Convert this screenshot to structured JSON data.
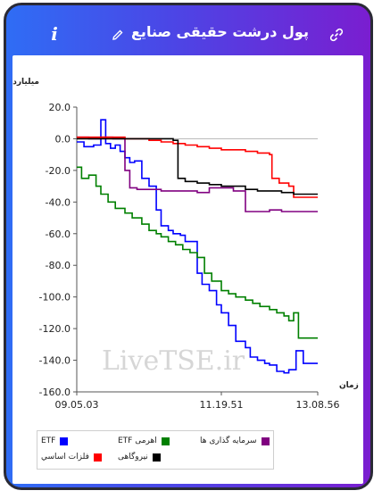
{
  "header": {
    "title": "پول درشت حقیقی صنایع",
    "info_label": "i",
    "info_icon": "info-icon",
    "edit_icon": "pencil-icon",
    "link_icon": "link-icon"
  },
  "watermark": "LiveTSE.ir",
  "colors": {
    "gradient_start": "#2f6df5",
    "gradient_end": "#7a1ed0"
  },
  "chart_data": {
    "type": "line",
    "ylabel": "میلیارد تومان",
    "xlabel": "زمان",
    "ylim": [
      -160,
      20
    ],
    "xlim": [
      0,
      1
    ],
    "yticks": [
      20,
      0,
      -20,
      -40,
      -60,
      -80,
      -100,
      -120,
      -140,
      -160
    ],
    "ytick_labels": [
      "20.0",
      "0.0",
      "-20.0",
      "-40.0",
      "-60.0",
      "-80.0",
      "-100.0",
      "-120.0",
      "-140.0",
      "-160.0"
    ],
    "xticks": [
      0,
      0.6,
      1
    ],
    "xtick_labels": [
      "09.05.03",
      "11.19.51",
      "13.08.56"
    ],
    "grid": false,
    "legend_position": "bottom",
    "series": [
      {
        "name": "ETF",
        "color": "#0000ff",
        "x": [
          0,
          0.03,
          0.07,
          0.1,
          0.12,
          0.14,
          0.16,
          0.18,
          0.2,
          0.22,
          0.24,
          0.27,
          0.3,
          0.33,
          0.35,
          0.38,
          0.4,
          0.43,
          0.45,
          0.5,
          0.52,
          0.55,
          0.58,
          0.6,
          0.63,
          0.66,
          0.7,
          0.72,
          0.75,
          0.78,
          0.8,
          0.83,
          0.86,
          0.88,
          0.91,
          0.94,
          0.97,
          1.0
        ],
        "y": [
          -2,
          -5,
          -4,
          12,
          -3,
          -6,
          -4,
          -8,
          -12,
          -15,
          -14,
          -25,
          -30,
          -45,
          -55,
          -58,
          -60,
          -61,
          -65,
          -85,
          -92,
          -96,
          -105,
          -110,
          -118,
          -128,
          -132,
          -138,
          -140,
          -142,
          -143,
          -147,
          -148,
          -146,
          -134,
          -142,
          -142,
          -142
        ]
      },
      {
        "name": "اهرمی ETF",
        "color": "#008000",
        "x": [
          0,
          0.02,
          0.05,
          0.08,
          0.1,
          0.13,
          0.16,
          0.2,
          0.23,
          0.27,
          0.3,
          0.33,
          0.35,
          0.38,
          0.41,
          0.44,
          0.47,
          0.5,
          0.53,
          0.56,
          0.6,
          0.63,
          0.66,
          0.7,
          0.73,
          0.76,
          0.8,
          0.83,
          0.86,
          0.88,
          0.9,
          0.92,
          1.0
        ],
        "y": [
          -18,
          -25,
          -23,
          -30,
          -35,
          -40,
          -44,
          -47,
          -50,
          -54,
          -58,
          -60,
          -62,
          -65,
          -67,
          -70,
          -72,
          -75,
          -85,
          -90,
          -96,
          -98,
          -100,
          -102,
          -104,
          -106,
          -108,
          -110,
          -112,
          -115,
          -110,
          -126,
          -126
        ]
      },
      {
        "name": "سرمایه گذاری ها",
        "color": "#800080",
        "x": [
          0,
          0.05,
          0.1,
          0.15,
          0.2,
          0.22,
          0.25,
          0.3,
          0.35,
          0.4,
          0.45,
          0.5,
          0.55,
          0.6,
          0.65,
          0.7,
          0.75,
          0.8,
          0.85,
          0.9,
          0.95,
          1.0
        ],
        "y": [
          1,
          0,
          1,
          0,
          -20,
          -31,
          -32,
          -32,
          -33,
          -33,
          -33,
          -34,
          -31,
          -31,
          -33,
          -46,
          -46,
          -45,
          -46,
          -46,
          -46,
          -46
        ]
      },
      {
        "name": "فلزات اساسي",
        "color": "#ff0000",
        "x": [
          0,
          0.1,
          0.2,
          0.3,
          0.35,
          0.4,
          0.45,
          0.5,
          0.55,
          0.6,
          0.65,
          0.7,
          0.75,
          0.8,
          0.81,
          0.84,
          0.88,
          0.9,
          0.95,
          1.0
        ],
        "y": [
          1,
          1,
          0,
          -1,
          -2,
          -3,
          -4,
          -5,
          -6,
          -7,
          -7,
          -8,
          -9,
          -10,
          -25,
          -28,
          -30,
          -37,
          -37,
          -37
        ]
      },
      {
        "name": "نیروگاهی",
        "color": "#000000",
        "x": [
          0,
          0.1,
          0.2,
          0.3,
          0.35,
          0.4,
          0.42,
          0.45,
          0.5,
          0.55,
          0.6,
          0.65,
          0.7,
          0.75,
          0.8,
          0.85,
          0.9,
          0.95,
          1.0
        ],
        "y": [
          0,
          0,
          0,
          0,
          0,
          -1,
          -25,
          -27,
          -28,
          -29,
          -30,
          -30,
          -32,
          -33,
          -33,
          -34,
          -35,
          -35,
          -35
        ]
      }
    ]
  },
  "legend": {
    "items": [
      {
        "label": "ETF",
        "color": "#0000ff"
      },
      {
        "label": "اهرمی ETF",
        "color": "#008000"
      },
      {
        "label": "سرمایه گذاری ها",
        "color": "#800080"
      },
      {
        "label": "فلزات اساسي",
        "color": "#ff0000"
      },
      {
        "label": "نیروگاهی",
        "color": "#000000"
      }
    ]
  }
}
